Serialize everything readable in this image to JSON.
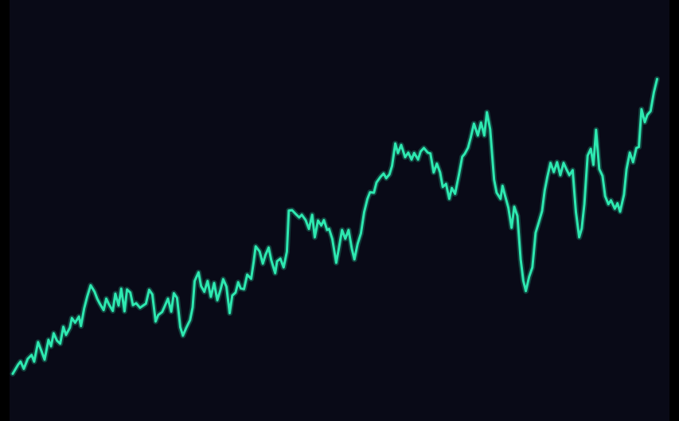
{
  "colors": {
    "background": "#090a17",
    "frame": "#000000",
    "line": "#2ee8b0"
  },
  "chart_data": {
    "type": "line",
    "title": "",
    "xlabel": "",
    "ylabel": "",
    "grid": false,
    "legend": "none",
    "xlim": [
      0,
      100
    ],
    "ylim": [
      0,
      100
    ],
    "series": [
      {
        "values": [
          [
            0.0,
            5.3
          ],
          [
            0.8,
            7.6
          ],
          [
            1.2,
            8.5
          ],
          [
            1.7,
            6.6
          ],
          [
            2.3,
            9.2
          ],
          [
            2.9,
            10.2
          ],
          [
            3.3,
            8.5
          ],
          [
            3.9,
            13.6
          ],
          [
            4.5,
            10.9
          ],
          [
            4.9,
            9.0
          ],
          [
            5.5,
            14.2
          ],
          [
            5.9,
            12.5
          ],
          [
            6.3,
            15.9
          ],
          [
            6.8,
            14.0
          ],
          [
            7.3,
            13.2
          ],
          [
            7.8,
            17.6
          ],
          [
            8.2,
            15.5
          ],
          [
            8.8,
            17.4
          ],
          [
            9.1,
            19.9
          ],
          [
            9.6,
            18.7
          ],
          [
            10.2,
            20.3
          ],
          [
            10.5,
            17.8
          ],
          [
            11.0,
            22.5
          ],
          [
            11.5,
            25.7
          ],
          [
            12.0,
            28.5
          ],
          [
            12.6,
            26.8
          ],
          [
            13.0,
            25.0
          ],
          [
            13.4,
            23.7
          ],
          [
            14.0,
            22.0
          ],
          [
            14.4,
            25.0
          ],
          [
            14.8,
            23.5
          ],
          [
            15.4,
            21.8
          ],
          [
            15.8,
            26.3
          ],
          [
            16.3,
            23.2
          ],
          [
            16.7,
            27.6
          ],
          [
            17.2,
            21.7
          ],
          [
            17.6,
            27.4
          ],
          [
            18.1,
            26.6
          ],
          [
            18.5,
            23.3
          ],
          [
            19.0,
            23.8
          ],
          [
            19.6,
            22.6
          ],
          [
            20.0,
            23.1
          ],
          [
            20.5,
            23.7
          ],
          [
            21.0,
            27.3
          ],
          [
            21.5,
            26.1
          ],
          [
            22.0,
            19.0
          ],
          [
            22.4,
            20.7
          ],
          [
            23.0,
            21.5
          ],
          [
            23.4,
            23.0
          ],
          [
            23.9,
            25.0
          ],
          [
            24.4,
            21.6
          ],
          [
            24.8,
            26.4
          ],
          [
            25.3,
            25.2
          ],
          [
            25.8,
            17.5
          ],
          [
            26.2,
            15.3
          ],
          [
            26.7,
            17.3
          ],
          [
            27.3,
            19.4
          ],
          [
            27.7,
            22.7
          ],
          [
            28.0,
            29.6
          ],
          [
            28.6,
            31.9
          ],
          [
            29.0,
            28.3
          ],
          [
            29.5,
            26.8
          ],
          [
            30.0,
            29.6
          ],
          [
            30.5,
            25.5
          ],
          [
            31.0,
            29.1
          ],
          [
            31.5,
            24.6
          ],
          [
            32.0,
            27.4
          ],
          [
            32.4,
            30.1
          ],
          [
            32.9,
            28.1
          ],
          [
            33.4,
            21.2
          ],
          [
            33.8,
            25.8
          ],
          [
            34.3,
            26.6
          ],
          [
            34.7,
            29.3
          ],
          [
            35.1,
            27.7
          ],
          [
            35.6,
            27.5
          ],
          [
            36.1,
            31.3
          ],
          [
            36.7,
            30.2
          ],
          [
            37.1,
            34.7
          ],
          [
            37.4,
            38.7
          ],
          [
            38.0,
            37.4
          ],
          [
            38.5,
            34.2
          ],
          [
            38.9,
            36.4
          ],
          [
            39.4,
            38.4
          ],
          [
            39.8,
            35.1
          ],
          [
            40.4,
            31.7
          ],
          [
            40.7,
            34.8
          ],
          [
            41.2,
            35.5
          ],
          [
            41.7,
            33.2
          ],
          [
            42.2,
            37.3
          ],
          [
            42.5,
            48.1
          ],
          [
            43.0,
            48.2
          ],
          [
            43.5,
            47.3
          ],
          [
            44.1,
            46.3
          ],
          [
            44.5,
            47.0
          ],
          [
            45.1,
            45.6
          ],
          [
            45.6,
            43.3
          ],
          [
            46.1,
            47.0
          ],
          [
            46.5,
            41.1
          ],
          [
            47.0,
            45.5
          ],
          [
            47.5,
            44.2
          ],
          [
            47.9,
            45.6
          ],
          [
            48.4,
            43.0
          ],
          [
            48.7,
            43.3
          ],
          [
            49.2,
            40.6
          ],
          [
            49.8,
            34.4
          ],
          [
            50.2,
            38.1
          ],
          [
            50.7,
            43.0
          ],
          [
            51.2,
            40.7
          ],
          [
            51.7,
            43.0
          ],
          [
            52.2,
            38.1
          ],
          [
            52.6,
            35.3
          ],
          [
            53.1,
            39.4
          ],
          [
            53.6,
            42.1
          ],
          [
            54.1,
            47.7
          ],
          [
            54.6,
            51.1
          ],
          [
            55.0,
            52.9
          ],
          [
            55.6,
            52.8
          ],
          [
            56.0,
            55.5
          ],
          [
            56.6,
            56.9
          ],
          [
            57.1,
            57.8
          ],
          [
            57.5,
            56.6
          ],
          [
            58.0,
            57.6
          ],
          [
            58.4,
            59.8
          ],
          [
            58.9,
            65.7
          ],
          [
            59.3,
            63.2
          ],
          [
            59.8,
            65.3
          ],
          [
            60.4,
            62.1
          ],
          [
            60.9,
            63.3
          ],
          [
            61.4,
            61.5
          ],
          [
            61.8,
            63.2
          ],
          [
            62.4,
            61.5
          ],
          [
            62.8,
            63.6
          ],
          [
            63.3,
            64.5
          ],
          [
            63.9,
            63.3
          ],
          [
            64.3,
            63.1
          ],
          [
            64.8,
            58.1
          ],
          [
            65.3,
            60.4
          ],
          [
            65.8,
            58.1
          ],
          [
            66.2,
            54.3
          ],
          [
            66.7,
            55.1
          ],
          [
            67.2,
            51.2
          ],
          [
            67.6,
            54.0
          ],
          [
            68.1,
            52.5
          ],
          [
            68.7,
            57.6
          ],
          [
            69.2,
            62.2
          ],
          [
            69.6,
            63.0
          ],
          [
            70.1,
            64.6
          ],
          [
            70.5,
            67.2
          ],
          [
            71.0,
            70.9
          ],
          [
            71.6,
            67.8
          ],
          [
            72.1,
            71.2
          ],
          [
            72.6,
            67.8
          ],
          [
            73.0,
            73.9
          ],
          [
            73.5,
            69.4
          ],
          [
            74.1,
            56.2
          ],
          [
            74.5,
            52.8
          ],
          [
            75.1,
            51.2
          ],
          [
            75.4,
            54.6
          ],
          [
            75.8,
            52.0
          ],
          [
            76.3,
            48.9
          ],
          [
            76.8,
            43.6
          ],
          [
            77.2,
            49.1
          ],
          [
            77.7,
            46.7
          ],
          [
            78.2,
            35.3
          ],
          [
            78.6,
            29.7
          ],
          [
            79.0,
            27.0
          ],
          [
            79.5,
            30.7
          ],
          [
            80.0,
            33.2
          ],
          [
            80.5,
            42.3
          ],
          [
            81.0,
            45.1
          ],
          [
            81.5,
            48.0
          ],
          [
            81.9,
            53.4
          ],
          [
            82.3,
            56.9
          ],
          [
            82.8,
            60.6
          ],
          [
            83.3,
            58.2
          ],
          [
            83.8,
            60.8
          ],
          [
            84.3,
            57.4
          ],
          [
            84.8,
            60.6
          ],
          [
            85.2,
            59.1
          ],
          [
            85.7,
            57.4
          ],
          [
            86.2,
            58.7
          ],
          [
            86.7,
            47.7
          ],
          [
            87.2,
            41.1
          ],
          [
            87.6,
            43.4
          ],
          [
            88.0,
            49.8
          ],
          [
            88.5,
            62.5
          ],
          [
            89.0,
            64.3
          ],
          [
            89.4,
            60.1
          ],
          [
            89.8,
            69.3
          ],
          [
            90.3,
            59.0
          ],
          [
            90.8,
            57.2
          ],
          [
            91.2,
            51.9
          ],
          [
            91.7,
            49.8
          ],
          [
            92.1,
            50.8
          ],
          [
            92.7,
            48.6
          ],
          [
            93.1,
            50.0
          ],
          [
            93.5,
            47.8
          ],
          [
            94.1,
            52.3
          ],
          [
            94.5,
            59.0
          ],
          [
            95.0,
            63.3
          ],
          [
            95.5,
            60.8
          ],
          [
            96.0,
            64.5
          ],
          [
            96.4,
            64.8
          ],
          [
            96.8,
            74.7
          ],
          [
            97.3,
            71.3
          ],
          [
            97.7,
            73.2
          ],
          [
            98.2,
            74.2
          ],
          [
            98.7,
            79.1
          ],
          [
            99.2,
            82.6
          ]
        ]
      }
    ]
  }
}
